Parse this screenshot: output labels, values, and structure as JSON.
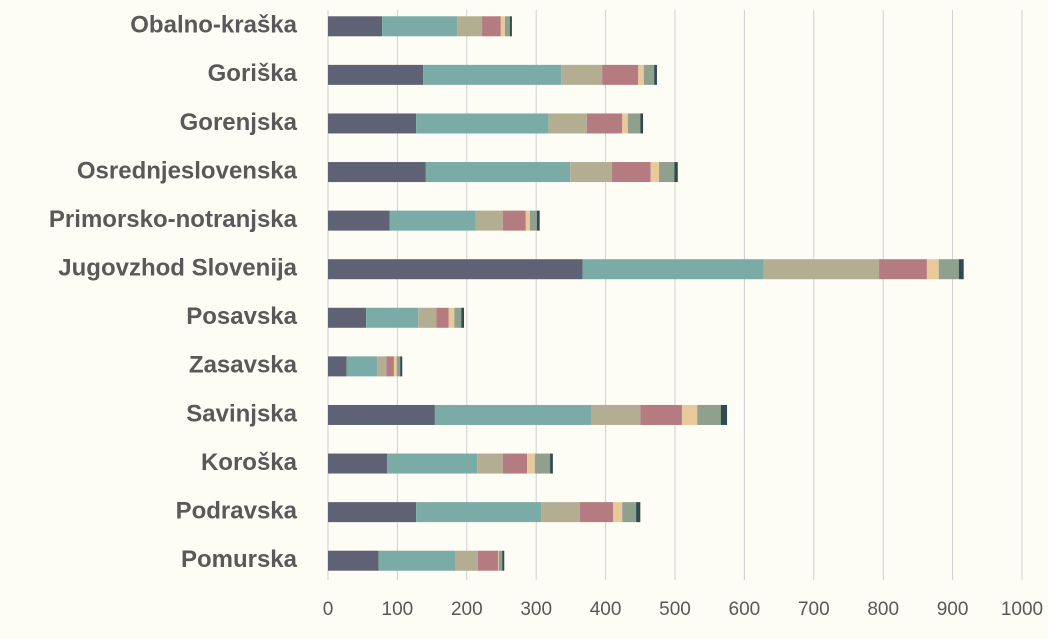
{
  "chart_data": {
    "type": "stacked_barh",
    "categories": [
      "Pomurska",
      "Podravska",
      "Koroška",
      "Savinjska",
      "Zasavska",
      "Posavska",
      "Jugovzhod Slovenija",
      "Primorsko-notranjska",
      "Osrednjeslovenska",
      "Gorenjska",
      "Goriška",
      "Obalno-kraška"
    ],
    "series": [
      {
        "color": "#5f6275",
        "values": [
          73,
          127,
          85,
          154,
          27,
          55,
          367,
          89,
          141,
          127,
          137,
          78
        ]
      },
      {
        "color": "#7aaba6",
        "values": [
          110,
          180,
          130,
          226,
          44,
          75,
          261,
          124,
          208,
          191,
          199,
          108
        ]
      },
      {
        "color": "#b3ae92",
        "values": [
          33,
          56,
          37,
          70,
          13,
          26,
          166,
          39,
          60,
          55,
          59,
          36
        ]
      },
      {
        "color": "#b47c80",
        "values": [
          29,
          48,
          35,
          60,
          11,
          18,
          69,
          33,
          56,
          51,
          52,
          27
        ]
      },
      {
        "color": "#e8c99a",
        "values": [
          1,
          13,
          11,
          22,
          4,
          8,
          17,
          6,
          12,
          8,
          8,
          6
        ]
      },
      {
        "color": "#8fa08f",
        "values": [
          5,
          20,
          22,
          34,
          5,
          10,
          29,
          10,
          22,
          18,
          15,
          7
        ]
      },
      {
        "color": "#2f4b4f",
        "values": [
          3,
          6,
          4,
          9,
          3,
          4,
          7,
          4,
          5,
          4,
          4,
          3
        ]
      }
    ],
    "xlim": [
      0,
      1000
    ],
    "xticks": [
      0,
      100,
      200,
      300,
      400,
      500,
      600,
      700,
      800,
      900,
      1000
    ],
    "grid": true
  }
}
